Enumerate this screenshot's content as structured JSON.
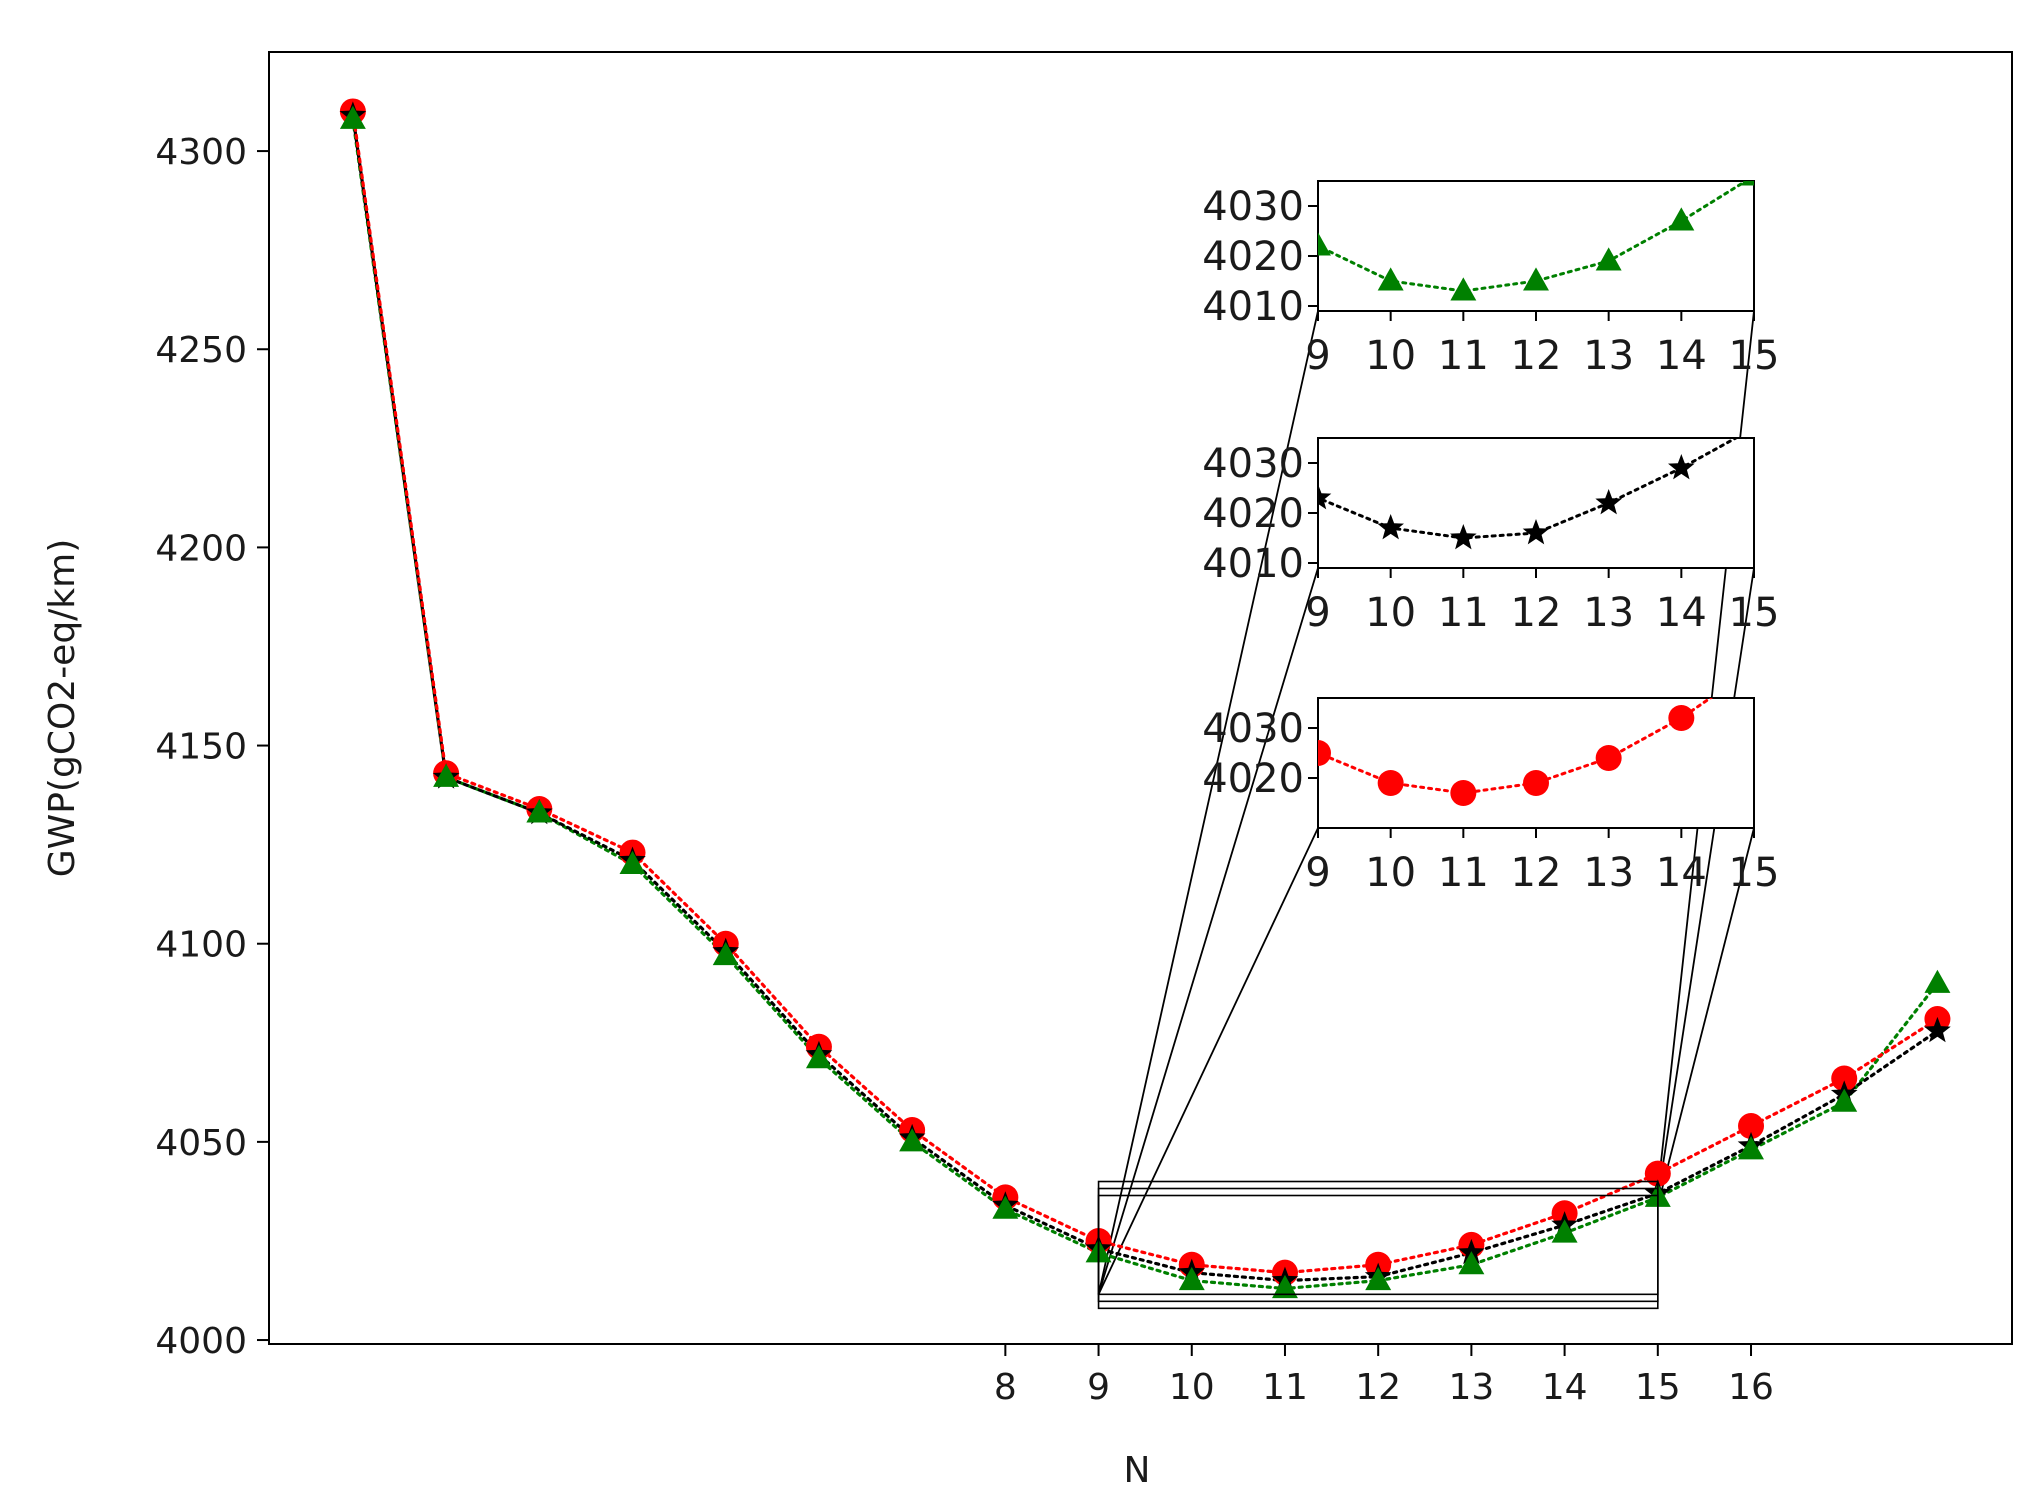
{
  "chart_data": {
    "type": "line",
    "title": "",
    "xlabel": "N",
    "ylabel": "GWP(gCO2-eq/km)",
    "xlim": [
      0.1,
      18.8
    ],
    "ylim": [
      3999,
      4325
    ],
    "x_ticks": [
      8,
      9,
      10,
      11,
      12,
      13,
      14,
      15,
      16
    ],
    "y_ticks": [
      4000,
      4050,
      4100,
      4150,
      4200,
      4250,
      4300
    ],
    "grid": false,
    "legend": "none",
    "x": [
      1,
      2,
      3,
      4,
      5,
      6,
      7,
      8,
      9,
      10,
      11,
      12,
      13,
      14,
      15,
      16,
      17,
      18
    ],
    "series": [
      {
        "marker": "circle",
        "color": "#ff0000",
        "values": [
          4310,
          4143,
          4134,
          4123,
          4100,
          4074,
          4053,
          4036,
          4025,
          4019,
          4017,
          4019,
          4024,
          4032,
          4042,
          4054,
          4066,
          4081
        ]
      },
      {
        "marker": "star",
        "color": "#000000",
        "values": [
          4309,
          4142,
          4133,
          4121,
          4098,
          4072,
          4051,
          4034,
          4023,
          4017,
          4015,
          4016,
          4022,
          4029,
          4037,
          4049,
          4062,
          4078
        ]
      },
      {
        "marker": "triangle",
        "color": "#008000",
        "values": [
          4308,
          4142,
          4133,
          4120,
          4097,
          4071,
          4050,
          4033,
          4022,
          4015,
          4013,
          4015,
          4019,
          4027,
          4036,
          4048,
          4060,
          4090
        ]
      }
    ],
    "zoom_region": {
      "xlim": [
        9,
        15
      ],
      "ylim": [
        4008,
        4040
      ]
    },
    "insets": [
      {
        "series": 2,
        "x_ticks": [
          9,
          10,
          11,
          12,
          13,
          14,
          15
        ],
        "y_ticks": [
          4010,
          4020,
          4030
        ],
        "xlim": [
          9,
          15
        ],
        "ylim": [
          4009,
          4035
        ]
      },
      {
        "series": 1,
        "x_ticks": [
          9,
          10,
          11,
          12,
          13,
          14,
          15
        ],
        "y_ticks": [
          4010,
          4020,
          4030
        ],
        "xlim": [
          9,
          15
        ],
        "ylim": [
          4009,
          4035
        ]
      },
      {
        "series": 0,
        "x_ticks": [
          9,
          10,
          11,
          12,
          13,
          14,
          15
        ],
        "y_ticks": [
          4020,
          4030
        ],
        "xlim": [
          9,
          15
        ],
        "ylim": [
          4010,
          4036
        ]
      }
    ]
  }
}
